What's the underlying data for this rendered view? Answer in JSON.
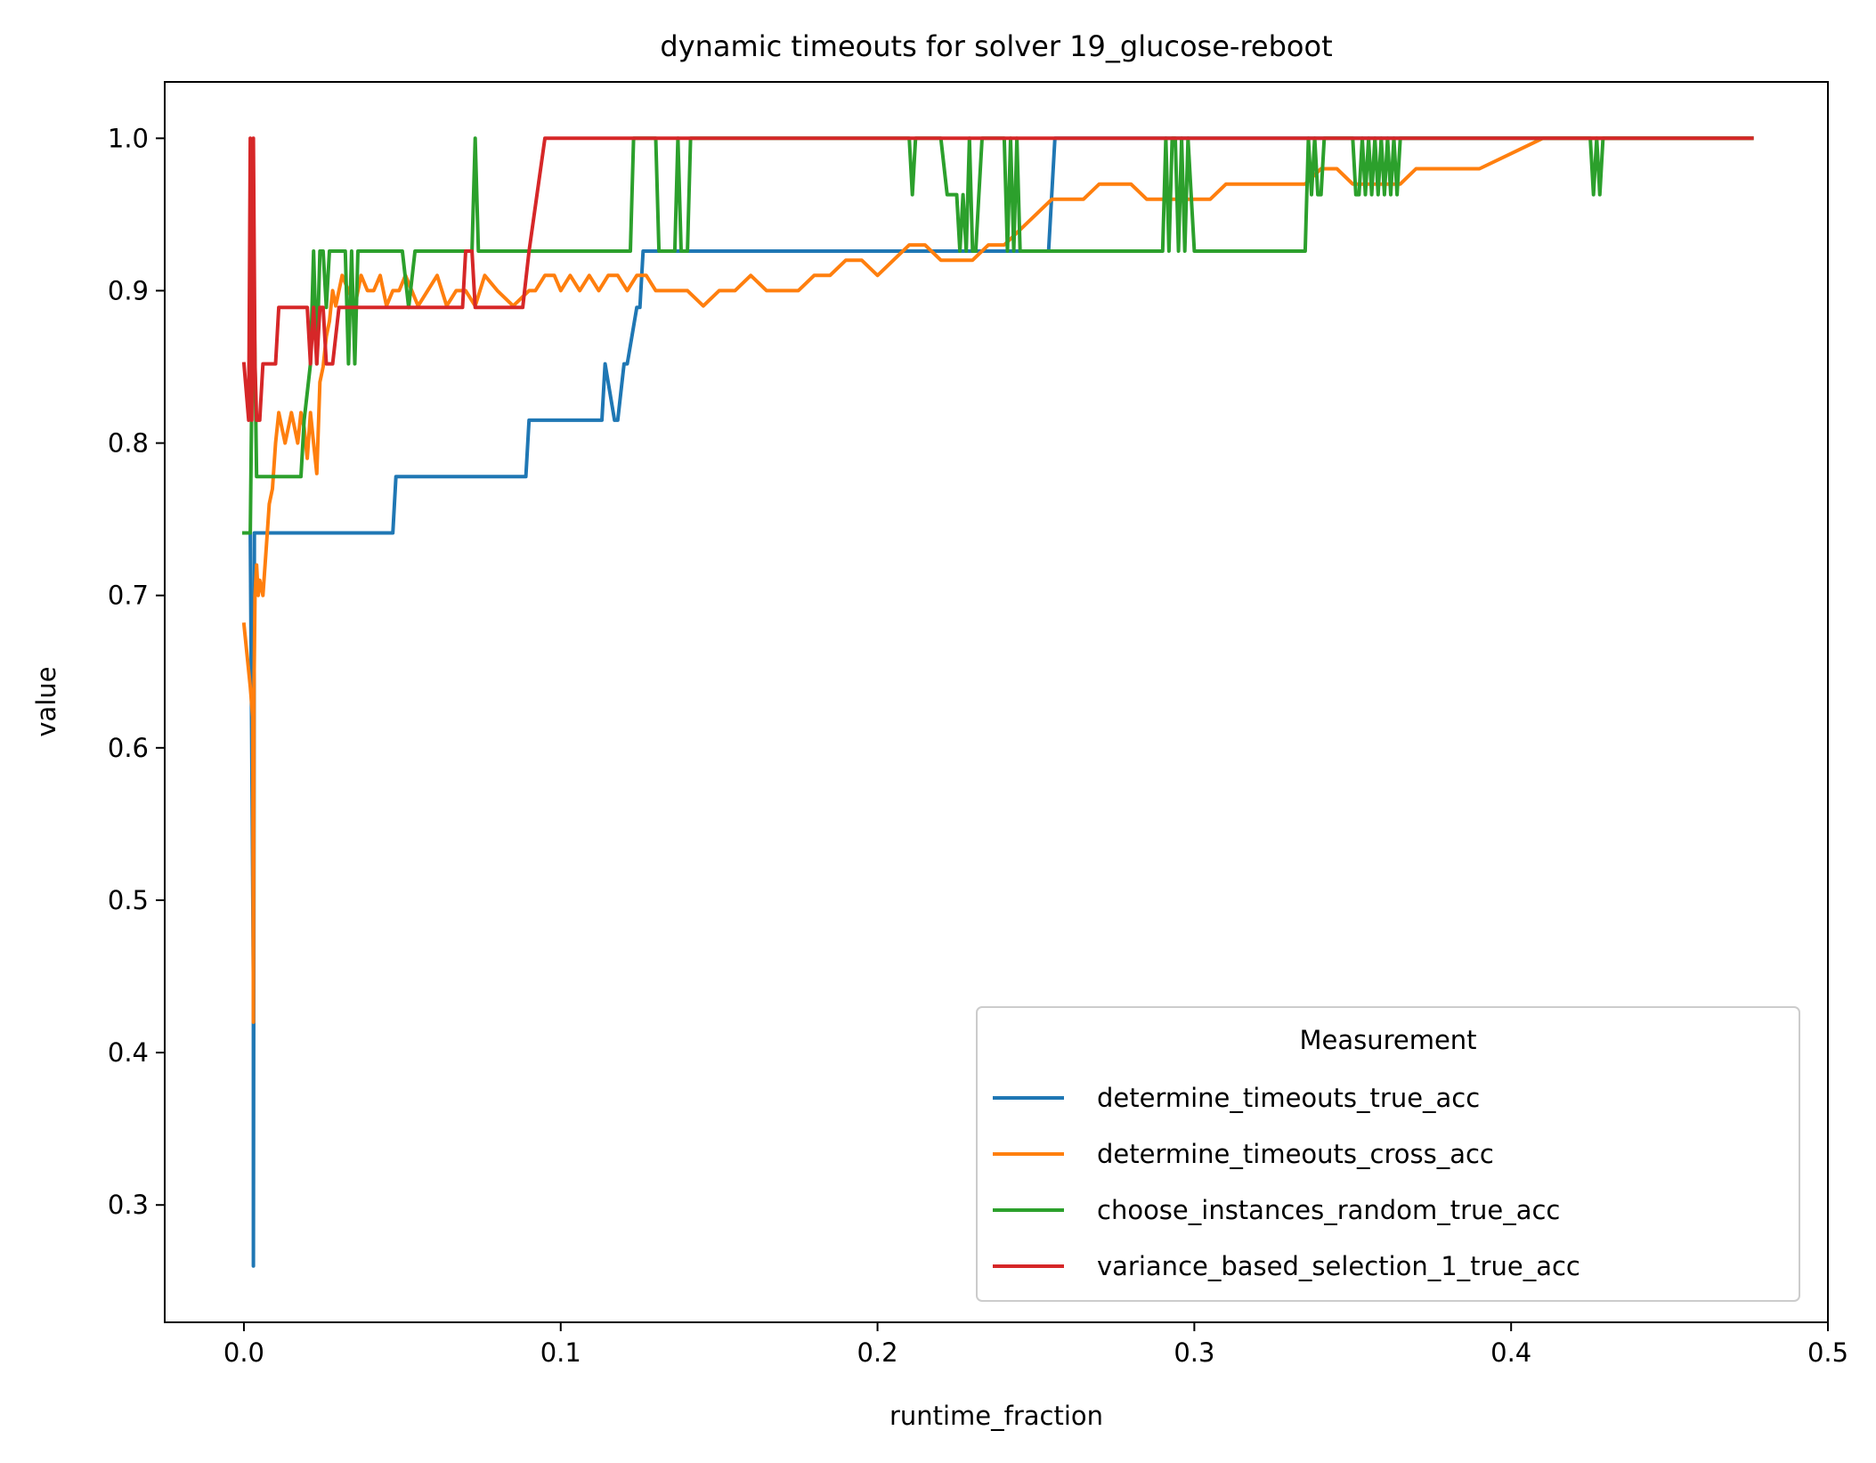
{
  "chart_data": {
    "type": "line",
    "title": "dynamic timeouts for solver 19_glucose-reboot",
    "xlabel": "runtime_fraction",
    "ylabel": "value",
    "xlim": [
      -0.025,
      0.5
    ],
    "ylim": [
      0.223,
      1.037
    ],
    "x_ticks": [
      0.0,
      0.1,
      0.2,
      0.3,
      0.4,
      0.5
    ],
    "x_tick_labels": [
      "0.0",
      "0.1",
      "0.2",
      "0.3",
      "0.4",
      "0.5"
    ],
    "y_ticks": [
      0.3,
      0.4,
      0.5,
      0.6,
      0.7,
      0.8,
      0.9,
      1.0
    ],
    "y_tick_labels": [
      "0.3",
      "0.4",
      "0.5",
      "0.6",
      "0.7",
      "0.8",
      "0.9",
      "1.0"
    ],
    "grid": false,
    "legend": {
      "title": "Measurement",
      "placement": "lower-right"
    },
    "series": [
      {
        "name": "determine_timeouts_true_acc",
        "color": "#1f77b4",
        "x": [
          0.0,
          0.002,
          0.003,
          0.003,
          0.0033,
          0.0035,
          0.004,
          0.047,
          0.048,
          0.089,
          0.09,
          0.113,
          0.114,
          0.117,
          0.118,
          0.12,
          0.121,
          0.124,
          0.125,
          0.126,
          0.127,
          0.254,
          0.256,
          0.476
        ],
        "values": [
          0.741,
          0.741,
          0.444,
          0.26,
          0.741,
          0.741,
          0.741,
          0.741,
          0.778,
          0.778,
          0.815,
          0.815,
          0.852,
          0.815,
          0.815,
          0.852,
          0.852,
          0.889,
          0.889,
          0.926,
          0.926,
          0.926,
          1.0,
          1.0
        ]
      },
      {
        "name": "determine_timeouts_cross_acc",
        "color": "#ff7f0e",
        "x": [
          0.0,
          0.002,
          0.0028,
          0.003,
          0.0032,
          0.0035,
          0.004,
          0.0045,
          0.005,
          0.006,
          0.007,
          0.008,
          0.009,
          0.01,
          0.011,
          0.012,
          0.013,
          0.014,
          0.015,
          0.016,
          0.017,
          0.018,
          0.019,
          0.02,
          0.021,
          0.022,
          0.023,
          0.024,
          0.025,
          0.026,
          0.027,
          0.028,
          0.029,
          0.03,
          0.031,
          0.033,
          0.035,
          0.037,
          0.039,
          0.041,
          0.043,
          0.045,
          0.047,
          0.049,
          0.051,
          0.053,
          0.055,
          0.058,
          0.061,
          0.064,
          0.067,
          0.07,
          0.073,
          0.076,
          0.08,
          0.085,
          0.09,
          0.092,
          0.095,
          0.098,
          0.1,
          0.103,
          0.106,
          0.109,
          0.112,
          0.115,
          0.118,
          0.121,
          0.124,
          0.127,
          0.13,
          0.135,
          0.14,
          0.145,
          0.15,
          0.155,
          0.16,
          0.165,
          0.17,
          0.175,
          0.18,
          0.185,
          0.19,
          0.195,
          0.2,
          0.205,
          0.21,
          0.215,
          0.22,
          0.225,
          0.23,
          0.235,
          0.24,
          0.245,
          0.25,
          0.255,
          0.26,
          0.265,
          0.27,
          0.275,
          0.28,
          0.285,
          0.29,
          0.295,
          0.3,
          0.305,
          0.31,
          0.315,
          0.32,
          0.325,
          0.33,
          0.335,
          0.34,
          0.345,
          0.35,
          0.355,
          0.36,
          0.365,
          0.37,
          0.375,
          0.38,
          0.39,
          0.4,
          0.41,
          0.42,
          0.43,
          0.44,
          0.45,
          0.46,
          0.47,
          0.476
        ],
        "values": [
          0.681,
          0.64,
          0.62,
          0.42,
          0.64,
          0.7,
          0.72,
          0.7,
          0.71,
          0.7,
          0.73,
          0.76,
          0.77,
          0.8,
          0.82,
          0.81,
          0.8,
          0.81,
          0.82,
          0.81,
          0.8,
          0.82,
          0.81,
          0.79,
          0.82,
          0.8,
          0.78,
          0.84,
          0.85,
          0.87,
          0.88,
          0.9,
          0.89,
          0.9,
          0.91,
          0.9,
          0.89,
          0.91,
          0.9,
          0.9,
          0.91,
          0.89,
          0.9,
          0.9,
          0.91,
          0.9,
          0.89,
          0.9,
          0.91,
          0.89,
          0.9,
          0.9,
          0.89,
          0.91,
          0.9,
          0.89,
          0.9,
          0.9,
          0.91,
          0.91,
          0.9,
          0.91,
          0.9,
          0.91,
          0.9,
          0.91,
          0.91,
          0.9,
          0.91,
          0.91,
          0.9,
          0.9,
          0.9,
          0.89,
          0.9,
          0.9,
          0.91,
          0.9,
          0.9,
          0.9,
          0.91,
          0.91,
          0.92,
          0.92,
          0.91,
          0.92,
          0.93,
          0.93,
          0.92,
          0.92,
          0.92,
          0.93,
          0.93,
          0.94,
          0.95,
          0.96,
          0.96,
          0.96,
          0.97,
          0.97,
          0.97,
          0.96,
          0.96,
          0.96,
          0.96,
          0.96,
          0.97,
          0.97,
          0.97,
          0.97,
          0.97,
          0.97,
          0.98,
          0.98,
          0.97,
          0.97,
          0.97,
          0.97,
          0.98,
          0.98,
          0.98,
          0.98,
          0.99,
          1.0,
          1.0,
          1.0,
          1.0,
          1.0,
          1.0,
          1.0,
          1.0
        ]
      },
      {
        "name": "choose_instances_random_true_acc",
        "color": "#2ca02c",
        "x": [
          0.0,
          0.002,
          0.003,
          0.004,
          0.005,
          0.018,
          0.019,
          0.021,
          0.022,
          0.023,
          0.024,
          0.025,
          0.026,
          0.027,
          0.028,
          0.032,
          0.033,
          0.034,
          0.035,
          0.036,
          0.037,
          0.04,
          0.05,
          0.052,
          0.054,
          0.055,
          0.072,
          0.073,
          0.074,
          0.075,
          0.076,
          0.077,
          0.122,
          0.123,
          0.13,
          0.131,
          0.136,
          0.137,
          0.138,
          0.14,
          0.141,
          0.142,
          0.143,
          0.21,
          0.211,
          0.212,
          0.213,
          0.22,
          0.222,
          0.225,
          0.226,
          0.227,
          0.228,
          0.229,
          0.23,
          0.231,
          0.232,
          0.233,
          0.24,
          0.241,
          0.242,
          0.243,
          0.244,
          0.245,
          0.246,
          0.29,
          0.291,
          0.292,
          0.293,
          0.294,
          0.295,
          0.296,
          0.297,
          0.298,
          0.299,
          0.3,
          0.301,
          0.302,
          0.304,
          0.305,
          0.335,
          0.336,
          0.337,
          0.338,
          0.339,
          0.34,
          0.341,
          0.35,
          0.351,
          0.352,
          0.353,
          0.354,
          0.355,
          0.356,
          0.357,
          0.358,
          0.359,
          0.36,
          0.361,
          0.362,
          0.363,
          0.364,
          0.365,
          0.366,
          0.425,
          0.426,
          0.427,
          0.428,
          0.429,
          0.43,
          0.476
        ],
        "values": [
          0.741,
          0.741,
          0.926,
          0.778,
          0.778,
          0.778,
          0.815,
          0.852,
          0.926,
          0.852,
          0.926,
          0.926,
          0.889,
          0.926,
          0.926,
          0.926,
          0.852,
          0.926,
          0.852,
          0.926,
          0.926,
          0.926,
          0.926,
          0.889,
          0.926,
          0.926,
          0.926,
          1.0,
          0.926,
          0.926,
          0.926,
          0.926,
          0.926,
          1.0,
          1.0,
          0.926,
          0.926,
          1.0,
          0.926,
          0.926,
          1.0,
          1.0,
          1.0,
          1.0,
          0.963,
          1.0,
          1.0,
          1.0,
          0.963,
          0.963,
          0.926,
          0.963,
          0.926,
          1.0,
          0.926,
          0.926,
          0.963,
          1.0,
          1.0,
          0.926,
          1.0,
          0.926,
          1.0,
          0.926,
          0.926,
          0.926,
          1.0,
          0.926,
          1.0,
          1.0,
          0.926,
          1.0,
          0.926,
          1.0,
          0.963,
          0.926,
          0.926,
          0.926,
          0.926,
          0.926,
          0.926,
          1.0,
          0.963,
          1.0,
          0.963,
          0.963,
          1.0,
          1.0,
          0.963,
          0.963,
          1.0,
          0.963,
          1.0,
          0.963,
          1.0,
          0.963,
          1.0,
          0.963,
          1.0,
          0.963,
          1.0,
          0.963,
          1.0,
          1.0,
          1.0,
          0.963,
          1.0,
          0.963,
          1.0,
          1.0,
          1.0
        ]
      },
      {
        "name": "variance_based_selection_1_true_acc",
        "color": "#d62728",
        "x": [
          0.0,
          0.0015,
          0.002,
          0.0025,
          0.003,
          0.0035,
          0.004,
          0.005,
          0.006,
          0.007,
          0.008,
          0.01,
          0.011,
          0.012,
          0.013,
          0.02,
          0.021,
          0.022,
          0.023,
          0.024,
          0.025,
          0.026,
          0.027,
          0.028,
          0.03,
          0.031,
          0.045,
          0.068,
          0.069,
          0.07,
          0.071,
          0.072,
          0.073,
          0.074,
          0.075,
          0.086,
          0.088,
          0.09,
          0.095,
          0.096,
          0.476
        ],
        "values": [
          0.852,
          0.815,
          1.0,
          0.815,
          1.0,
          0.852,
          0.815,
          0.815,
          0.852,
          0.852,
          0.852,
          0.852,
          0.889,
          0.889,
          0.889,
          0.889,
          0.852,
          0.889,
          0.852,
          0.889,
          0.889,
          0.852,
          0.852,
          0.852,
          0.889,
          0.889,
          0.889,
          0.889,
          0.889,
          0.926,
          0.926,
          0.926,
          0.889,
          0.889,
          0.889,
          0.889,
          0.889,
          0.926,
          1.0,
          1.0,
          1.0
        ]
      }
    ]
  }
}
